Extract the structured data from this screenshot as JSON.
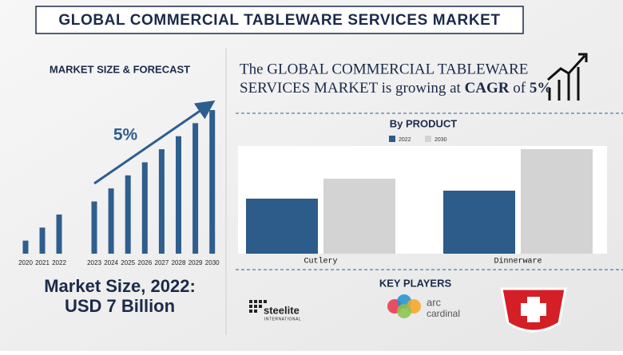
{
  "title": "GLOBAL COMMERCIAL TABLEWARE SERVICES MARKET",
  "headline": {
    "line1": "The GLOBAL COMMERCIAL TABLEWARE",
    "line2": "SERVICES MARKET is growing at ",
    "emphasis": "CAGR",
    "joiner": " of ",
    "rate": "5%"
  },
  "market_size": {
    "line1": "Market Size, 2022:",
    "line2": "USD 7 Billion"
  },
  "chart_data": [
    {
      "type": "bar",
      "title": "MARKET SIZE & FORECAST",
      "annotation": "5%",
      "color": "#2e5e8e",
      "categories": [
        "2020",
        "2021",
        "2022",
        "2023",
        "2024",
        "2025",
        "2026",
        "2027",
        "2028",
        "2029",
        "2030"
      ],
      "values": [
        1,
        2,
        3,
        4,
        5,
        6,
        7,
        8,
        9,
        10,
        11
      ]
    },
    {
      "type": "grouped-bar",
      "title": "By PRODUCT",
      "categories": [
        "Cutlery",
        "Dinnerware"
      ],
      "series": [
        {
          "name": "2022",
          "color": "#2d5b8a",
          "values": [
            69,
            79
          ]
        },
        {
          "name": "2030",
          "color": "#d3d3d3",
          "values": [
            94,
            131
          ]
        }
      ]
    }
  ],
  "key_players": {
    "title": "KEY PLAYERS",
    "logos": [
      {
        "name": "steelite",
        "sub": "INTERNATIONAL"
      },
      {
        "name": "arc",
        "sub": "cardinal"
      }
    ]
  }
}
